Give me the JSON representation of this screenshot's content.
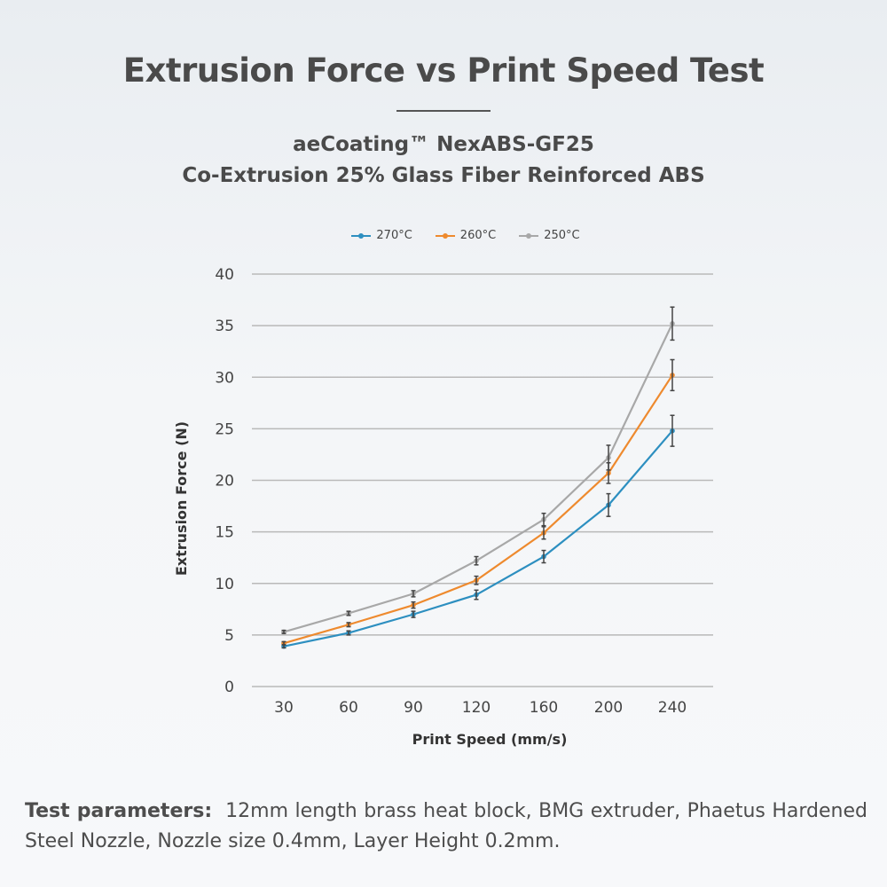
{
  "header": {
    "title": "Extrusion Force vs Print Speed Test",
    "subtitle_line1": "aeCoating™ NexABS-GF25",
    "subtitle_line2": "Co-Extrusion 25% Glass Fiber Reinforced ABS"
  },
  "colors": {
    "series_270": "#2d8fc0",
    "series_260": "#ee8a2e",
    "series_250": "#a8a8a8",
    "gridline": "#b9b9b9",
    "error_bar": "#444444"
  },
  "chart_data": {
    "type": "line",
    "title": "",
    "xlabel": "Print Speed (mm/s)",
    "ylabel": "Extrusion Force (N)",
    "categories": [
      "30",
      "60",
      "90",
      "120",
      "160",
      "200",
      "240"
    ],
    "ylim": [
      0,
      40
    ],
    "yticks": [
      "0",
      "5",
      "10",
      "15",
      "20",
      "25",
      "30",
      "35",
      "40"
    ],
    "grid": true,
    "legend_position": "top-center",
    "series": [
      {
        "name": "270°C",
        "values": [
          3.9,
          5.2,
          7.0,
          8.9,
          12.6,
          17.6,
          24.8
        ],
        "error": [
          0.15,
          0.2,
          0.3,
          0.45,
          0.6,
          1.1,
          1.5
        ]
      },
      {
        "name": "260°C",
        "values": [
          4.2,
          6.0,
          7.9,
          10.3,
          14.9,
          20.7,
          30.2
        ],
        "error": [
          0.15,
          0.2,
          0.3,
          0.4,
          0.6,
          1.0,
          1.5
        ]
      },
      {
        "name": "250°C",
        "values": [
          5.3,
          7.1,
          9.0,
          12.2,
          16.2,
          22.2,
          35.2
        ],
        "error": [
          0.15,
          0.2,
          0.3,
          0.4,
          0.6,
          1.2,
          1.6
        ]
      }
    ]
  },
  "footnote": {
    "label": "Test parameters:",
    "text": "12mm length brass heat block, BMG extruder, Phaetus Hardened Steel Nozzle, Nozzle size 0.4mm, Layer Height 0.2mm."
  }
}
